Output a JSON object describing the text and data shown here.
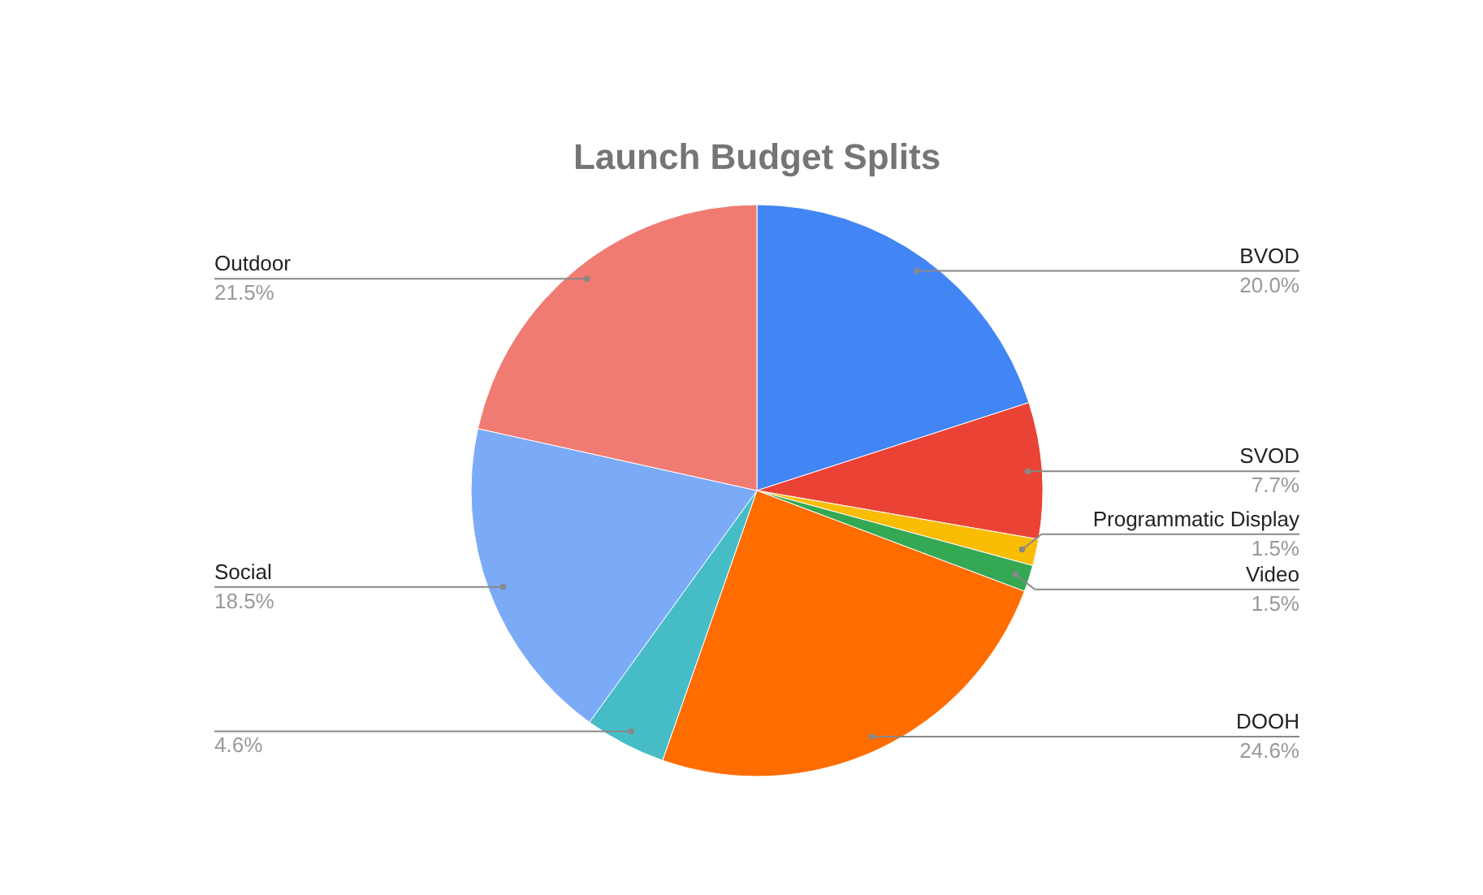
{
  "chart_data": {
    "type": "pie",
    "title": "Launch Budget Splits",
    "categories": [
      "BVOD",
      "SVOD",
      "Programmatic Display",
      "Video",
      "DOOH",
      null,
      "Social",
      "Outdoor"
    ],
    "values": [
      20.0,
      7.7,
      1.5,
      1.5,
      24.6,
      4.6,
      18.5,
      21.5
    ],
    "value_labels": [
      "20.0%",
      "7.7%",
      "1.5%",
      "1.5%",
      "24.6%",
      "4.6%",
      "18.5%",
      "21.5%"
    ],
    "colors": [
      "#4285f4",
      "#ea4335",
      "#fbbc04",
      "#34a853",
      "#ff6d01",
      "#46bdc6",
      "#7baaf7",
      "#f07b72"
    ]
  }
}
